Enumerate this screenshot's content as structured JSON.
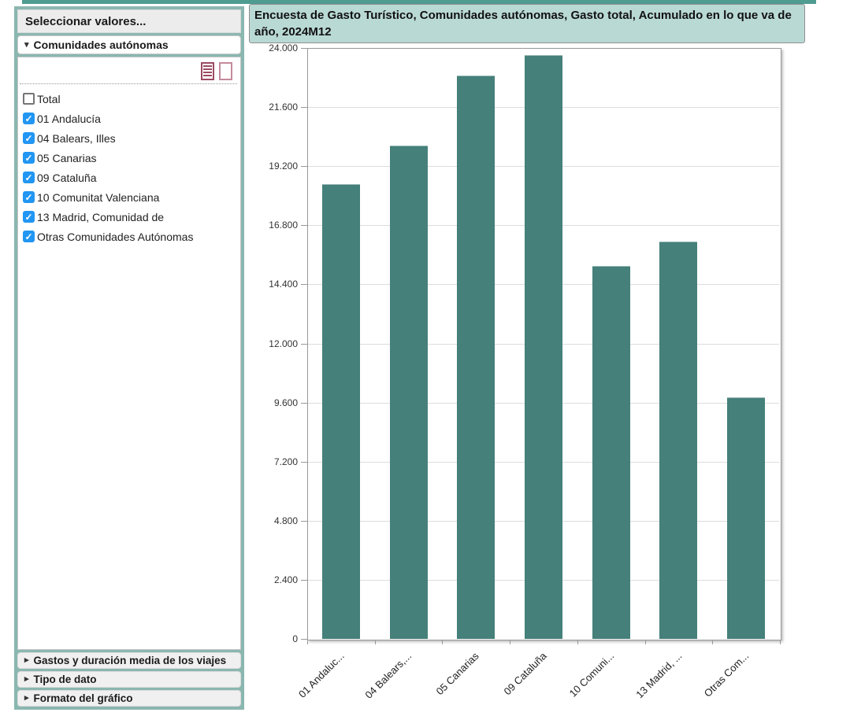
{
  "colors": {
    "strip_teal": "#4f9c91",
    "frame_teal": "#8ab7b0",
    "title_bg_teal": "#b9d9d4",
    "bar_teal": "#45807a",
    "checkbox_blue": "#2196f3",
    "icon_maroon": "#9c4a63"
  },
  "icons": {
    "expanded_arrow": "▾",
    "collapsed_arrow": "▸",
    "check": "✓"
  },
  "sidebar": {
    "title": "Seleccionar valores...",
    "section_label": "Comunidades autónomas",
    "options": [
      {
        "label": "Total",
        "checked": false
      },
      {
        "label": "01 Andalucía",
        "checked": true
      },
      {
        "label": "04 Balears, Illes",
        "checked": true
      },
      {
        "label": "05 Canarias",
        "checked": true
      },
      {
        "label": "09 Cataluña",
        "checked": true
      },
      {
        "label": "10 Comunitat Valenciana",
        "checked": true
      },
      {
        "label": "13 Madrid, Comunidad de",
        "checked": true
      },
      {
        "label": "Otras Comunidades Autónomas",
        "checked": true
      }
    ],
    "collapsed_sections": [
      "Gastos y duración media de los viajes",
      "Tipo de dato",
      "Formato del gráfico"
    ]
  },
  "chart": {
    "title": "Encuesta de Gasto Turístico, Comunidades autónomas, Gasto total, Acumulado en lo que va de año, 2024M12"
  },
  "chart_data": {
    "type": "bar",
    "title": "Encuesta de Gasto Turístico, Comunidades autónomas, Gasto total, Acumulado en lo que va de año, 2024M12",
    "categories": [
      "01 Andalucía",
      "04 Balears, Illes",
      "05 Canarias",
      "09 Cataluña",
      "10 Comunitat Valenciana",
      "13 Madrid, Comunidad de",
      "Otras Comunidades Autónomas"
    ],
    "x_tick_labels": [
      "01 Andaluc...",
      "04 Balears,...",
      "05 Canarias",
      "09 Cataluña",
      "10 Comuni...",
      "13 Madrid, ...",
      "Otras Com..."
    ],
    "values": [
      18470,
      20040,
      22880,
      23715,
      15150,
      16130,
      9810
    ],
    "y_ticks": [
      0,
      2400,
      4800,
      7200,
      9600,
      12000,
      14400,
      16800,
      19200,
      21600,
      24000
    ],
    "y_tick_labels": [
      "0",
      "2.400",
      "4.800",
      "7.200",
      "9.600",
      "12.000",
      "14.400",
      "16.800",
      "19.200",
      "21.600",
      "24.000"
    ],
    "ylim": [
      0,
      24000
    ],
    "xlabel": "",
    "ylabel": "",
    "grid": true,
    "legend": "none",
    "bar_color": "#45807a"
  }
}
